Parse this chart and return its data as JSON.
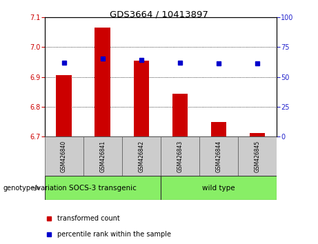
{
  "title": "GDS3664 / 10413897",
  "categories": [
    "GSM426840",
    "GSM426841",
    "GSM426842",
    "GSM426843",
    "GSM426844",
    "GSM426845"
  ],
  "red_values": [
    6.905,
    7.065,
    6.955,
    6.843,
    6.748,
    6.712
  ],
  "blue_values": [
    62,
    65,
    64,
    62,
    61,
    61
  ],
  "baseline": 6.7,
  "ylim_left": [
    6.7,
    7.1
  ],
  "ylim_right": [
    0,
    100
  ],
  "yticks_left": [
    6.7,
    6.8,
    6.9,
    7.0,
    7.1
  ],
  "yticks_right": [
    0,
    25,
    50,
    75,
    100
  ],
  "bar_color": "#cc0000",
  "dot_color": "#0000cc",
  "group1_label": "SOCS-3 transgenic",
  "group2_label": "wild type",
  "group_bg_color": "#88ee66",
  "tick_label_bg": "#cccccc",
  "xlabel_text": "genotype/variation",
  "legend_red": "transformed count",
  "legend_blue": "percentile rank within the sample",
  "bar_width": 0.4
}
